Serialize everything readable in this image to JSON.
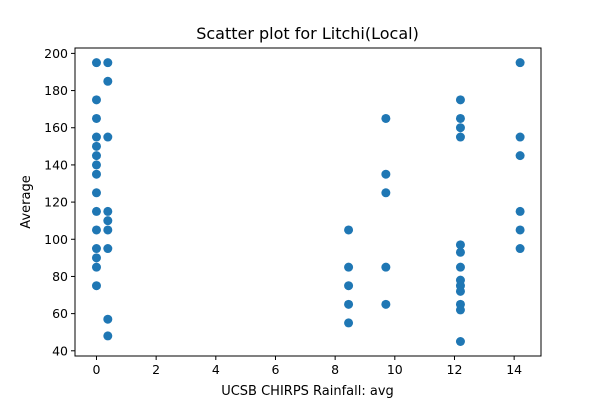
{
  "chart_data": {
    "type": "scatter",
    "title": "Scatter plot for Litchi(Local)",
    "xlabel": "UCSB CHIRPS Rainfall: avg",
    "ylabel": "Average",
    "xlim": [
      -0.72,
      14.9
    ],
    "ylim": [
      37.2,
      202.9
    ],
    "xticks": [
      0,
      2,
      4,
      6,
      8,
      10,
      12,
      14
    ],
    "yticks": [
      40,
      60,
      80,
      100,
      120,
      140,
      160,
      180,
      200
    ],
    "grid": false,
    "legend": "none",
    "marker_color": "#1f77b4",
    "points": [
      [
        0,
        195
      ],
      [
        0,
        175
      ],
      [
        0,
        165
      ],
      [
        0,
        155
      ],
      [
        0,
        150
      ],
      [
        0,
        145
      ],
      [
        0,
        140
      ],
      [
        0,
        135
      ],
      [
        0,
        125
      ],
      [
        0,
        115
      ],
      [
        0,
        105
      ],
      [
        0,
        95
      ],
      [
        0,
        90
      ],
      [
        0,
        85
      ],
      [
        0,
        75
      ],
      [
        0.38,
        195
      ],
      [
        0.38,
        185
      ],
      [
        0.38,
        155
      ],
      [
        0.38,
        115
      ],
      [
        0.38,
        110
      ],
      [
        0.38,
        105
      ],
      [
        0.38,
        95
      ],
      [
        0.38,
        57
      ],
      [
        0.38,
        48
      ],
      [
        8.45,
        105
      ],
      [
        8.45,
        85
      ],
      [
        8.45,
        75
      ],
      [
        8.45,
        65
      ],
      [
        8.45,
        55
      ],
      [
        9.7,
        165
      ],
      [
        9.7,
        135
      ],
      [
        9.7,
        125
      ],
      [
        9.7,
        85
      ],
      [
        9.7,
        65
      ],
      [
        12.2,
        175
      ],
      [
        12.2,
        165
      ],
      [
        12.2,
        160
      ],
      [
        12.2,
        155
      ],
      [
        12.2,
        97
      ],
      [
        12.2,
        93
      ],
      [
        12.2,
        85
      ],
      [
        12.2,
        78
      ],
      [
        12.2,
        75
      ],
      [
        12.2,
        72
      ],
      [
        12.2,
        65
      ],
      [
        12.2,
        62
      ],
      [
        12.2,
        45
      ],
      [
        14.2,
        195
      ],
      [
        14.2,
        155
      ],
      [
        14.2,
        145
      ],
      [
        14.2,
        115
      ],
      [
        14.2,
        105
      ],
      [
        14.2,
        95
      ]
    ]
  }
}
